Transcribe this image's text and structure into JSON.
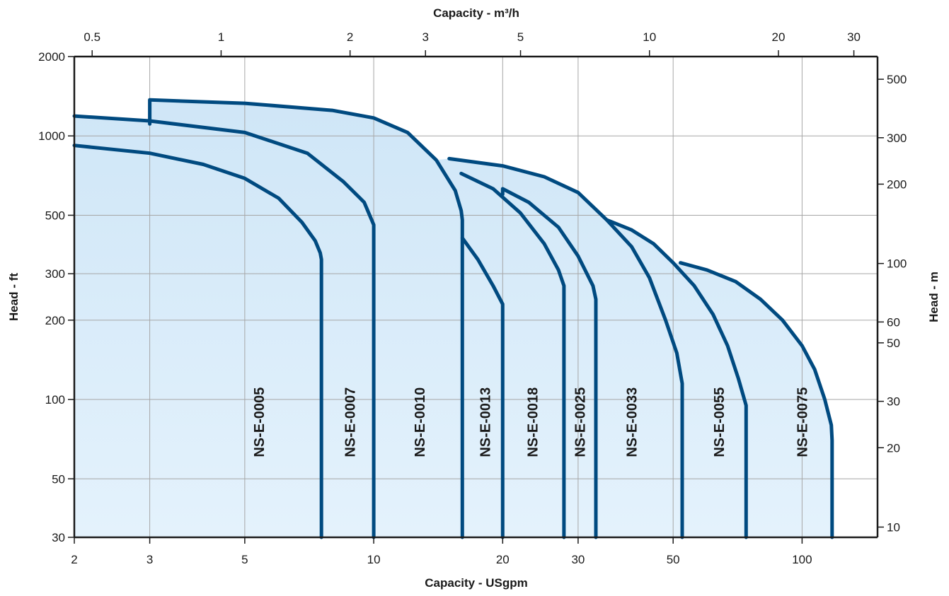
{
  "chart_data": {
    "type": "line",
    "xlabel_bottom": "Capacity - USgpm",
    "xlabel_top": "Capacity - m³/h",
    "ylabel_left": "Head - ft",
    "ylabel_right": "Head - m",
    "x_scale": "log",
    "y_scale": "log",
    "xlim": [
      2,
      150
    ],
    "ylim": [
      30,
      2000
    ],
    "grid": true,
    "colors": {
      "curve": "#004a80",
      "fill": "#d6ebf9",
      "grid": "#a6a6a6",
      "axis": "#1a1a1a"
    },
    "x_ticks_bottom": [
      {
        "value": 2,
        "label": "2"
      },
      {
        "value": 3,
        "label": "3"
      },
      {
        "value": 5,
        "label": "5"
      },
      {
        "value": 10,
        "label": "10"
      },
      {
        "value": 20,
        "label": "20"
      },
      {
        "value": 30,
        "label": "30"
      },
      {
        "value": 50,
        "label": "50"
      },
      {
        "value": 100,
        "label": "100"
      }
    ],
    "x_ticks_top": [
      {
        "value": 0.5,
        "label": "0.5"
      },
      {
        "value": 1,
        "label": "1"
      },
      {
        "value": 2,
        "label": "2"
      },
      {
        "value": 3,
        "label": "3"
      },
      {
        "value": 5,
        "label": "5"
      },
      {
        "value": 10,
        "label": "10"
      },
      {
        "value": 20,
        "label": "20"
      },
      {
        "value": 30,
        "label": "30"
      }
    ],
    "y_ticks_left": [
      {
        "value": 30,
        "label": "30"
      },
      {
        "value": 50,
        "label": "50"
      },
      {
        "value": 100,
        "label": "100"
      },
      {
        "value": 200,
        "label": "200"
      },
      {
        "value": 300,
        "label": "300"
      },
      {
        "value": 500,
        "label": "500"
      },
      {
        "value": 1000,
        "label": "1000"
      },
      {
        "value": 2000,
        "label": "2000"
      }
    ],
    "y_ticks_right": [
      {
        "value": 10,
        "label": "10"
      },
      {
        "value": 20,
        "label": "20"
      },
      {
        "value": 30,
        "label": "30"
      },
      {
        "value": 50,
        "label": "50"
      },
      {
        "value": 60,
        "label": "60"
      },
      {
        "value": 100,
        "label": "100"
      },
      {
        "value": 200,
        "label": "200"
      },
      {
        "value": 300,
        "label": "300"
      },
      {
        "value": 500,
        "label": "500"
      }
    ],
    "series": [
      {
        "name": "NS-E-0005",
        "label_x": 5.4,
        "label_y": 82,
        "points": [
          [
            2,
            920
          ],
          [
            3,
            860
          ],
          [
            4,
            780
          ],
          [
            5,
            690
          ],
          [
            6,
            580
          ],
          [
            6.8,
            470
          ],
          [
            7.3,
            400
          ],
          [
            7.5,
            360
          ],
          [
            7.55,
            340
          ],
          [
            7.55,
            30
          ]
        ]
      },
      {
        "name": "NS-E-0007",
        "label_x": 8.8,
        "label_y": 82,
        "points": [
          [
            2,
            1190
          ],
          [
            3,
            1140
          ],
          [
            5,
            1030
          ],
          [
            7,
            860
          ],
          [
            8.5,
            670
          ],
          [
            9.5,
            560
          ],
          [
            10,
            460
          ],
          [
            10,
            30
          ]
        ]
      },
      {
        "name": "NS-E-0010",
        "label_x": 12.8,
        "label_y": 82,
        "points": [
          [
            3,
            1110
          ],
          [
            3,
            1370
          ],
          [
            5,
            1330
          ],
          [
            8,
            1250
          ],
          [
            10,
            1170
          ],
          [
            12,
            1030
          ],
          [
            14,
            810
          ],
          [
            15.5,
            620
          ],
          [
            16,
            520
          ],
          [
            16.1,
            480
          ],
          [
            16.1,
            30
          ]
        ]
      },
      {
        "name": "NS-E-0013",
        "label_x": 18.2,
        "label_y": 82,
        "points": [
          [
            16.1,
            410
          ],
          [
            17.5,
            340
          ],
          [
            19,
            270
          ],
          [
            20,
            230
          ],
          [
            20,
            30
          ]
        ]
      },
      {
        "name": "NS-E-0018",
        "label_x": 23.5,
        "label_y": 82,
        "points": [
          [
            16,
            720
          ],
          [
            19,
            630
          ],
          [
            22,
            510
          ],
          [
            25,
            390
          ],
          [
            27,
            310
          ],
          [
            27.8,
            270
          ],
          [
            27.8,
            30
          ]
        ]
      },
      {
        "name": "NS-E-0025",
        "label_x": 30.3,
        "label_y": 82,
        "points": [
          [
            20,
            600
          ],
          [
            20,
            630
          ],
          [
            23,
            560
          ],
          [
            27,
            450
          ],
          [
            30,
            350
          ],
          [
            32.5,
            270
          ],
          [
            33,
            240
          ],
          [
            33,
            30
          ]
        ]
      },
      {
        "name": "NS-E-0033",
        "label_x": 40,
        "label_y": 82,
        "points": [
          [
            15,
            820
          ],
          [
            20,
            770
          ],
          [
            25,
            700
          ],
          [
            30,
            610
          ],
          [
            35,
            480
          ],
          [
            40,
            380
          ],
          [
            44,
            290
          ],
          [
            48,
            200
          ],
          [
            51,
            150
          ],
          [
            52.5,
            115
          ],
          [
            52.5,
            30
          ]
        ]
      },
      {
        "name": "NS-E-0055",
        "label_x": 64,
        "label_y": 82,
        "points": [
          [
            35,
            480
          ],
          [
            40,
            440
          ],
          [
            45,
            390
          ],
          [
            50,
            330
          ],
          [
            56,
            270
          ],
          [
            62,
            210
          ],
          [
            67,
            160
          ],
          [
            71,
            120
          ],
          [
            74,
            95
          ],
          [
            74,
            30
          ]
        ]
      },
      {
        "name": "NS-E-0075",
        "label_x": 100,
        "label_y": 82,
        "points": [
          [
            52,
            330
          ],
          [
            60,
            310
          ],
          [
            70,
            280
          ],
          [
            80,
            240
          ],
          [
            90,
            200
          ],
          [
            100,
            160
          ],
          [
            107,
            130
          ],
          [
            113,
            100
          ],
          [
            117,
            80
          ],
          [
            117.5,
            70
          ],
          [
            117.5,
            30
          ]
        ]
      }
    ],
    "envelope": [
      [
        2,
        30
      ],
      [
        2,
        1190
      ],
      [
        3,
        1140
      ],
      [
        3,
        1370
      ],
      [
        5,
        1330
      ],
      [
        8,
        1250
      ],
      [
        10,
        1170
      ],
      [
        12,
        1030
      ],
      [
        14,
        810
      ],
      [
        15,
        820
      ],
      [
        20,
        770
      ],
      [
        25,
        700
      ],
      [
        30,
        610
      ],
      [
        35,
        480
      ],
      [
        40,
        440
      ],
      [
        45,
        390
      ],
      [
        50,
        330
      ],
      [
        52,
        330
      ],
      [
        60,
        310
      ],
      [
        70,
        280
      ],
      [
        80,
        240
      ],
      [
        90,
        200
      ],
      [
        100,
        160
      ],
      [
        107,
        130
      ],
      [
        113,
        100
      ],
      [
        117,
        80
      ],
      [
        117.5,
        70
      ],
      [
        117.5,
        30
      ]
    ]
  }
}
